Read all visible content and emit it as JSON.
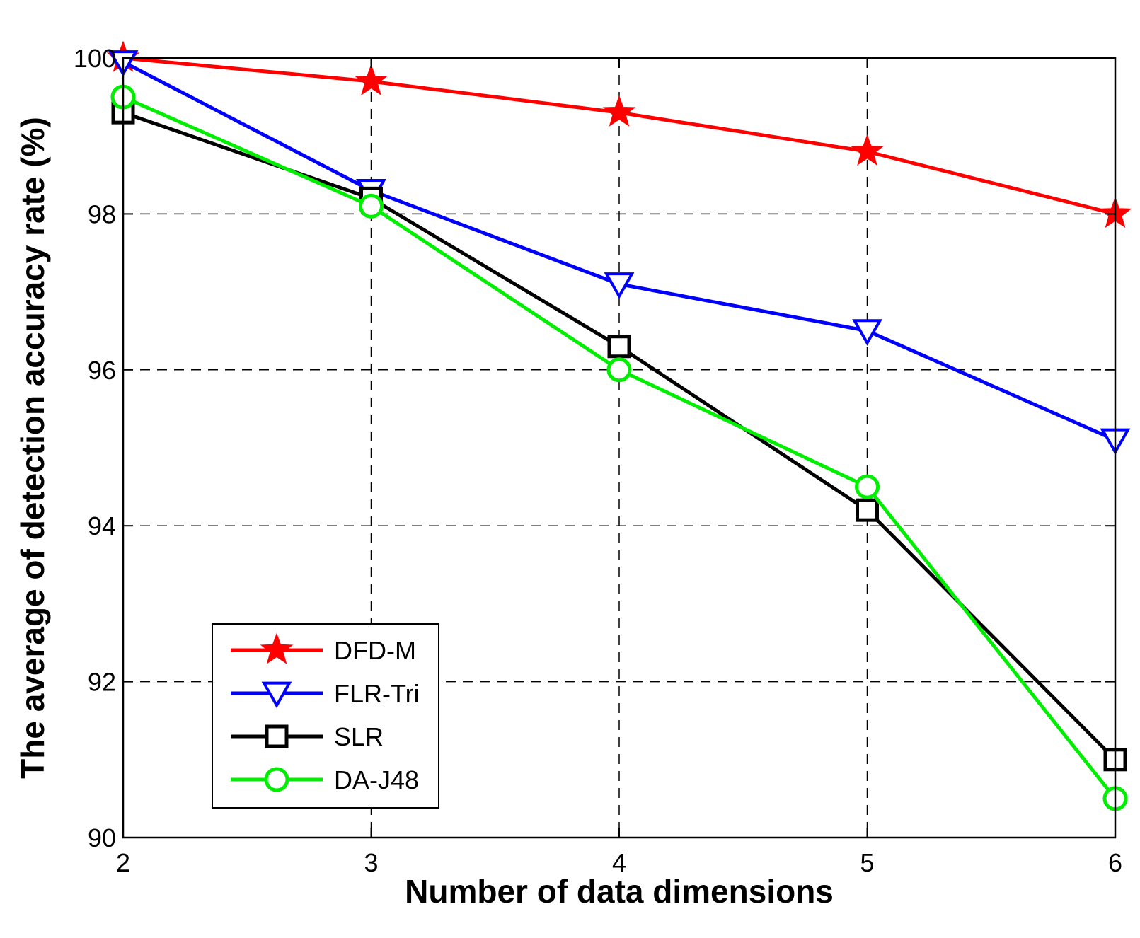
{
  "chart_data": {
    "type": "line",
    "x": [
      2,
      3,
      4,
      5,
      6
    ],
    "xlabel": "Number of data dimensions",
    "ylabel": "The average of detection accuracy rate (%)",
    "xlim": [
      2,
      6
    ],
    "ylim": [
      90,
      100
    ],
    "xticks": [
      2,
      3,
      4,
      5,
      6
    ],
    "yticks": [
      90,
      92,
      94,
      96,
      98,
      100
    ],
    "grid": true,
    "legend_position": "lower-left",
    "series": [
      {
        "name": "DFD-M",
        "values": [
          100,
          99.7,
          99.3,
          98.8,
          98.0
        ],
        "color": "#ff0000",
        "marker": "star"
      },
      {
        "name": "FLR-Tri",
        "values": [
          99.95,
          98.3,
          97.1,
          96.5,
          95.1
        ],
        "color": "#0000ff",
        "marker": "triangle-down"
      },
      {
        "name": "SLR",
        "values": [
          99.3,
          98.2,
          96.3,
          94.2,
          91.0
        ],
        "color": "#000000",
        "marker": "square"
      },
      {
        "name": "DA-J48",
        "values": [
          99.5,
          98.1,
          96.0,
          94.5,
          90.5
        ],
        "color": "#00ee00",
        "marker": "circle"
      }
    ]
  }
}
